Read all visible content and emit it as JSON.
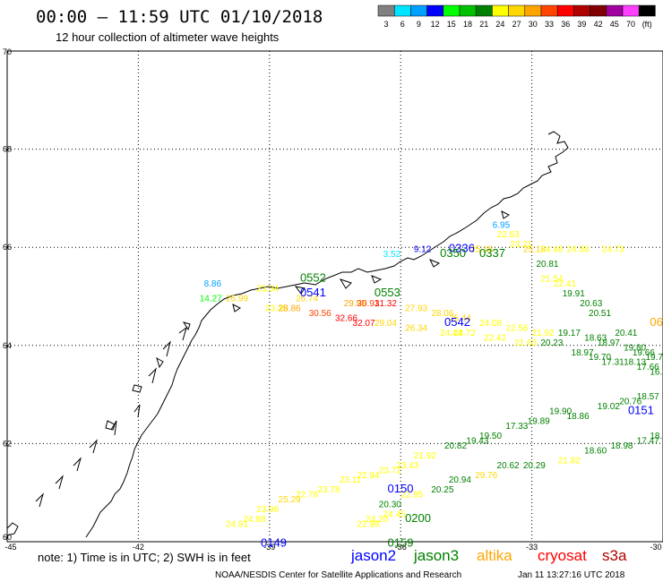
{
  "header": {
    "title": "00:00 – 11:59 UTC 01/10/2018",
    "subtitle": "12 hour collection of altimeter wave heights"
  },
  "legend": {
    "colors": [
      "#808080",
      "#00e5ff",
      "#00a0ff",
      "#0000ff",
      "#00ff00",
      "#00c000",
      "#008000",
      "#ffff00",
      "#ffd700",
      "#ffa500",
      "#ff4500",
      "#ff0000",
      "#b00000",
      "#800000",
      "#a000a0",
      "#ff40ff",
      "#000000"
    ],
    "labels": [
      "3",
      "6",
      "9",
      "12",
      "15",
      "18",
      "21",
      "24",
      "27",
      "30",
      "33",
      "36",
      "39",
      "42",
      "45",
      "70",
      "(ft)"
    ]
  },
  "chart_data": {
    "type": "scatter",
    "xlim": [
      -45,
      -30
    ],
    "ylim": [
      60,
      70
    ],
    "x_ticks": [
      "-45",
      "-42",
      "-39",
      "-36",
      "-33",
      "-30"
    ],
    "y_ticks": [
      "60",
      "62",
      "64",
      "66",
      "68",
      "70"
    ],
    "grid": true,
    "points": [
      {
        "lon": -40.6,
        "lat": 64.9,
        "v": "14.27",
        "c": "#00ff00"
      },
      {
        "lon": -40.0,
        "lat": 64.9,
        "v": "26.99",
        "c": "#ffd700"
      },
      {
        "lon": -39.3,
        "lat": 65.1,
        "v": "23.34",
        "c": "#ffff00"
      },
      {
        "lon": -38.4,
        "lat": 64.9,
        "v": "26.74",
        "c": "#ffd700"
      },
      {
        "lon": -39.1,
        "lat": 64.7,
        "v": "23.35",
        "c": "#ffff00"
      },
      {
        "lon": -38.8,
        "lat": 64.7,
        "v": "28.86",
        "c": "#ffa500"
      },
      {
        "lon": -38.1,
        "lat": 64.6,
        "v": "30.56",
        "c": "#ff4500"
      },
      {
        "lon": -37.5,
        "lat": 64.5,
        "v": "32.66",
        "c": "#ff0000"
      },
      {
        "lon": -37.1,
        "lat": 64.4,
        "v": "32.07",
        "c": "#ff0000"
      },
      {
        "lon": -37.3,
        "lat": 64.8,
        "v": "29.95",
        "c": "#ffa500"
      },
      {
        "lon": -37.0,
        "lat": 64.8,
        "v": "30.91",
        "c": "#ff4500"
      },
      {
        "lon": -36.6,
        "lat": 64.8,
        "v": "31.32",
        "c": "#ff0000"
      },
      {
        "lon": -35.9,
        "lat": 64.7,
        "v": "27.93",
        "c": "#ffd700"
      },
      {
        "lon": -35.3,
        "lat": 64.6,
        "v": "28.06",
        "c": "#ffd700"
      },
      {
        "lon": -34.9,
        "lat": 64.5,
        "v": "25.44",
        "c": "#ffd700"
      },
      {
        "lon": -34.2,
        "lat": 64.4,
        "v": "24.08",
        "c": "#ffff00"
      },
      {
        "lon": -33.6,
        "lat": 64.3,
        "v": "22.56",
        "c": "#ffff00"
      },
      {
        "lon": -33.0,
        "lat": 64.2,
        "v": "21.92",
        "c": "#ffff00"
      },
      {
        "lon": -36.6,
        "lat": 64.4,
        "v": "29.04",
        "c": "#ffd700"
      },
      {
        "lon": -35.9,
        "lat": 64.3,
        "v": "26.34",
        "c": "#ffd700"
      },
      {
        "lon": -35.1,
        "lat": 64.2,
        "v": "24.44",
        "c": "#ffff00"
      },
      {
        "lon": -34.8,
        "lat": 64.2,
        "v": "23.72",
        "c": "#ffff00"
      },
      {
        "lon": -34.1,
        "lat": 64.1,
        "v": "22.42",
        "c": "#ffff00"
      },
      {
        "lon": -33.4,
        "lat": 64.0,
        "v": "21.63",
        "c": "#ffff00"
      },
      {
        "lon": -32.8,
        "lat": 64.0,
        "v": "20.23",
        "c": "#008000"
      },
      {
        "lon": -32.4,
        "lat": 64.2,
        "v": "19.17",
        "c": "#008000"
      },
      {
        "lon": -31.8,
        "lat": 64.1,
        "v": "18.63",
        "c": "#008000"
      },
      {
        "lon": -31.1,
        "lat": 64.2,
        "v": "20.41",
        "c": "#008000"
      },
      {
        "lon": -31.5,
        "lat": 64.0,
        "v": "18.97",
        "c": "#008000"
      },
      {
        "lon": -30.9,
        "lat": 63.9,
        "v": "19.80",
        "c": "#008000"
      },
      {
        "lon": -30.7,
        "lat": 63.8,
        "v": "19.66",
        "c": "#008000"
      },
      {
        "lon": -30.4,
        "lat": 63.7,
        "v": "19.72",
        "c": "#008000"
      },
      {
        "lon": -32.1,
        "lat": 63.8,
        "v": "18.97",
        "c": "#008000"
      },
      {
        "lon": -31.7,
        "lat": 63.7,
        "v": "19.70",
        "c": "#008000"
      },
      {
        "lon": -31.4,
        "lat": 63.6,
        "v": "17.31",
        "c": "#008000"
      },
      {
        "lon": -30.9,
        "lat": 63.6,
        "v": "18.13",
        "c": "#008000"
      },
      {
        "lon": -30.6,
        "lat": 63.5,
        "v": "17.66",
        "c": "#008000"
      },
      {
        "lon": -30.3,
        "lat": 63.4,
        "v": "16.98",
        "c": "#008000"
      },
      {
        "lon": -33.9,
        "lat": 66.4,
        "v": "6.95",
        "c": "#00a0ff"
      },
      {
        "lon": -33.8,
        "lat": 66.2,
        "v": "22.63",
        "c": "#ffff00"
      },
      {
        "lon": -33.5,
        "lat": 66.0,
        "v": "23.21",
        "c": "#ffff00"
      },
      {
        "lon": -33.2,
        "lat": 65.9,
        "v": "25.18",
        "c": "#ffd700"
      },
      {
        "lon": -32.8,
        "lat": 65.9,
        "v": "24.48",
        "c": "#ffff00"
      },
      {
        "lon": -32.2,
        "lat": 65.9,
        "v": "24.58",
        "c": "#ffff00"
      },
      {
        "lon": -31.4,
        "lat": 65.9,
        "v": "24.73",
        "c": "#ffff00"
      },
      {
        "lon": -34.4,
        "lat": 65.9,
        "v": "25.18",
        "c": "#ffd700"
      },
      {
        "lon": -32.9,
        "lat": 65.6,
        "v": "20.81",
        "c": "#008000"
      },
      {
        "lon": -32.8,
        "lat": 65.3,
        "v": "21.54",
        "c": "#ffff00"
      },
      {
        "lon": -32.5,
        "lat": 65.2,
        "v": "22.41",
        "c": "#ffff00"
      },
      {
        "lon": -32.3,
        "lat": 65.0,
        "v": "19.91",
        "c": "#008000"
      },
      {
        "lon": -31.9,
        "lat": 64.8,
        "v": "20.63",
        "c": "#008000"
      },
      {
        "lon": -31.7,
        "lat": 64.6,
        "v": "20.51",
        "c": "#008000"
      },
      {
        "lon": -35.7,
        "lat": 65.9,
        "v": "9.12",
        "c": "#0000ff"
      },
      {
        "lon": -36.4,
        "lat": 65.8,
        "v": "3.52",
        "c": "#00e5ff"
      },
      {
        "lon": -40.5,
        "lat": 65.2,
        "v": "8.86",
        "c": "#00a0ff"
      },
      {
        "lon": -33.1,
        "lat": 62.4,
        "v": "19.89",
        "c": "#008000"
      },
      {
        "lon": -32.6,
        "lat": 62.6,
        "v": "19.90",
        "c": "#008000"
      },
      {
        "lon": -32.2,
        "lat": 62.5,
        "v": "18.86",
        "c": "#008000"
      },
      {
        "lon": -31.5,
        "lat": 62.7,
        "v": "19.02",
        "c": "#008000"
      },
      {
        "lon": -31.0,
        "lat": 62.8,
        "v": "20.76",
        "c": "#008000"
      },
      {
        "lon": -30.6,
        "lat": 62.9,
        "v": "18.57",
        "c": "#008000"
      },
      {
        "lon": -33.6,
        "lat": 62.3,
        "v": "17.33",
        "c": "#008000"
      },
      {
        "lon": -34.2,
        "lat": 62.1,
        "v": "19.50",
        "c": "#008000"
      },
      {
        "lon": -34.5,
        "lat": 62.0,
        "v": "19.43",
        "c": "#008000"
      },
      {
        "lon": -35.0,
        "lat": 61.9,
        "v": "20.82",
        "c": "#008000"
      },
      {
        "lon": -33.2,
        "lat": 61.5,
        "v": "20.29",
        "c": "#008000"
      },
      {
        "lon": -32.4,
        "lat": 61.6,
        "v": "21.82",
        "c": "#ffff00"
      },
      {
        "lon": -31.8,
        "lat": 61.8,
        "v": "18.60",
        "c": "#008000"
      },
      {
        "lon": -31.2,
        "lat": 61.9,
        "v": "18.98",
        "c": "#008000"
      },
      {
        "lon": -30.6,
        "lat": 62.0,
        "v": "17.47",
        "c": "#008000"
      },
      {
        "lon": -30.3,
        "lat": 62.1,
        "v": "18.16",
        "c": "#008000"
      },
      {
        "lon": -33.8,
        "lat": 61.5,
        "v": "20.62",
        "c": "#008000"
      },
      {
        "lon": -34.3,
        "lat": 61.3,
        "v": "29.76",
        "c": "#ffd700"
      },
      {
        "lon": -34.9,
        "lat": 61.2,
        "v": "20.94",
        "c": "#008000"
      },
      {
        "lon": -35.3,
        "lat": 61.0,
        "v": "20.25",
        "c": "#008000"
      },
      {
        "lon": -36.0,
        "lat": 60.9,
        "v": "22.95",
        "c": "#ffff00"
      },
      {
        "lon": -36.5,
        "lat": 60.7,
        "v": "20.30",
        "c": "#008000"
      },
      {
        "lon": -35.7,
        "lat": 61.7,
        "v": "21.92",
        "c": "#ffff00"
      },
      {
        "lon": -36.1,
        "lat": 61.5,
        "v": "23.43",
        "c": "#ffff00"
      },
      {
        "lon": -36.5,
        "lat": 61.4,
        "v": "23.72",
        "c": "#ffff00"
      },
      {
        "lon": -37.0,
        "lat": 61.3,
        "v": "22.94",
        "c": "#ffff00"
      },
      {
        "lon": -37.4,
        "lat": 61.2,
        "v": "23.11",
        "c": "#ffff00"
      },
      {
        "lon": -37.9,
        "lat": 61.0,
        "v": "23.78",
        "c": "#ffff00"
      },
      {
        "lon": -38.4,
        "lat": 60.9,
        "v": "22.76",
        "c": "#ffff00"
      },
      {
        "lon": -38.8,
        "lat": 60.8,
        "v": "25.29",
        "c": "#ffd700"
      },
      {
        "lon": -39.3,
        "lat": 60.6,
        "v": "23.96",
        "c": "#ffff00"
      },
      {
        "lon": -39.6,
        "lat": 60.4,
        "v": "24.88",
        "c": "#ffff00"
      },
      {
        "lon": -40.0,
        "lat": 60.3,
        "v": "24.91",
        "c": "#ffff00"
      },
      {
        "lon": -37.0,
        "lat": 60.3,
        "v": "22.98",
        "c": "#ffff00"
      },
      {
        "lon": -36.8,
        "lat": 60.4,
        "v": "24.20",
        "c": "#ffff00"
      },
      {
        "lon": -36.4,
        "lat": 60.5,
        "v": "24.45",
        "c": "#ffff00"
      }
    ],
    "passes": [
      {
        "lon": -38.3,
        "lat": 65.3,
        "t": "0552",
        "c": "#008000"
      },
      {
        "lon": -38.3,
        "lat": 65.0,
        "t": "0541",
        "c": "#0000ff"
      },
      {
        "lon": -36.6,
        "lat": 65.0,
        "t": "0553",
        "c": "#008000"
      },
      {
        "lon": -35.0,
        "lat": 64.4,
        "t": "0542",
        "c": "#0000ff"
      },
      {
        "lon": -34.9,
        "lat": 65.9,
        "t": "0336",
        "c": "#0000ff"
      },
      {
        "lon": -35.1,
        "lat": 65.8,
        "t": "0350",
        "c": "#008000"
      },
      {
        "lon": -34.2,
        "lat": 65.8,
        "t": "0337",
        "c": "#008000"
      },
      {
        "lon": -30.3,
        "lat": 64.4,
        "t": "06",
        "c": "#ffa500"
      },
      {
        "lon": -30.8,
        "lat": 62.6,
        "t": "0151",
        "c": "#0000ff"
      },
      {
        "lon": -36.3,
        "lat": 61.0,
        "t": "0150",
        "c": "#0000ff"
      },
      {
        "lon": -35.9,
        "lat": 60.4,
        "t": "0200",
        "c": "#008000"
      },
      {
        "lon": -36.3,
        "lat": 59.9,
        "t": "0159",
        "c": "#008000"
      },
      {
        "lon": -39.2,
        "lat": 59.9,
        "t": "0149",
        "c": "#0000ff"
      }
    ]
  },
  "note": "note:  1) Time is in UTC;  2) SWH is in feet",
  "satellites": [
    {
      "name": "jason2",
      "color": "#0000ff"
    },
    {
      "name": "jason3",
      "color": "#008000"
    },
    {
      "name": "altika",
      "color": "#ffa500"
    },
    {
      "name": "cryosat",
      "color": "#ff0000"
    },
    {
      "name": "s3a",
      "color": "#b00000"
    }
  ],
  "credit": "NOAA/NESDIS Center for Satellite Applications and Research",
  "timestamp": "Jan 11 13:27:16 UTC 2018"
}
